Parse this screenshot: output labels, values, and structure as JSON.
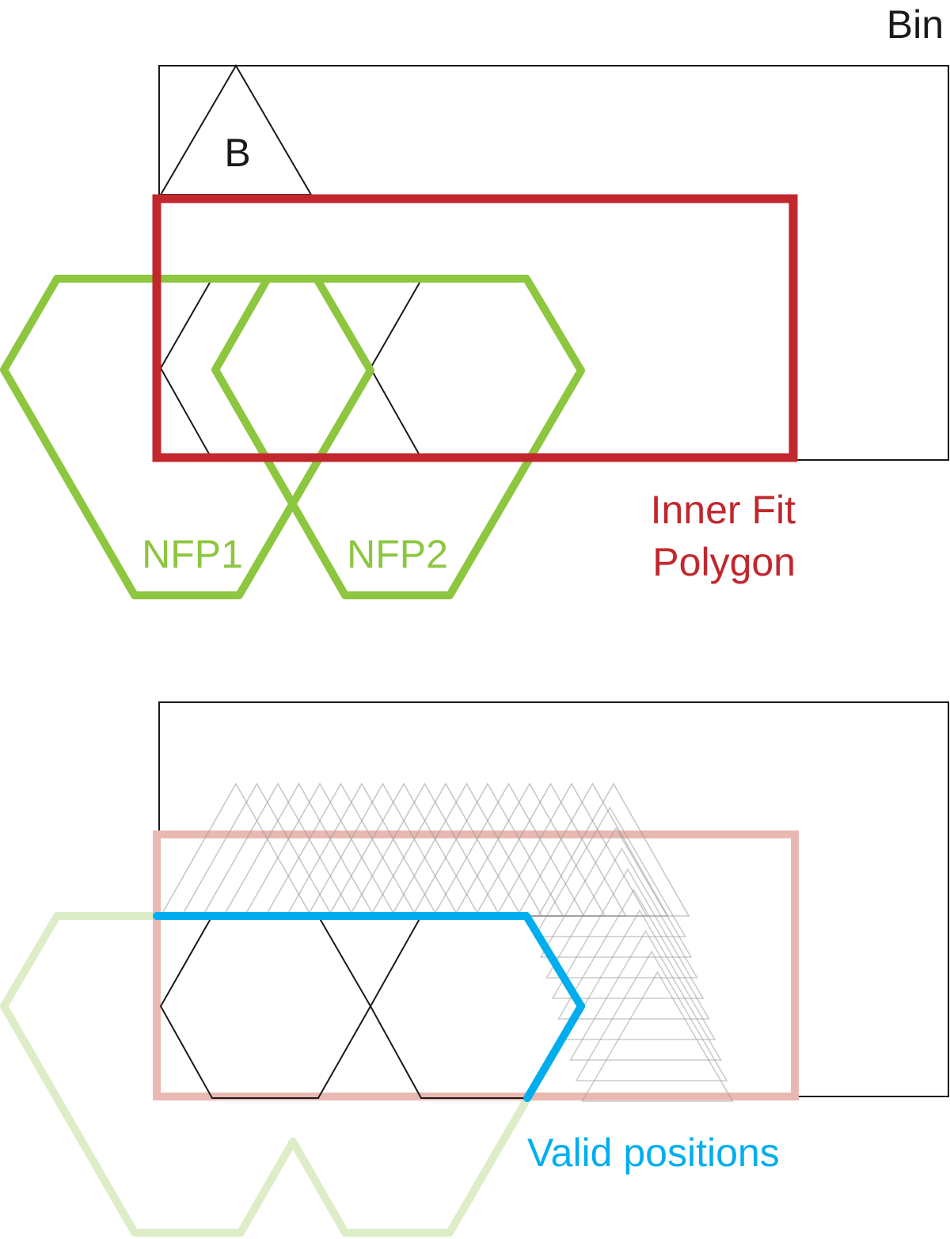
{
  "labels": {
    "bin": "Bin",
    "part": "B",
    "nfp1": "NFP1",
    "nfp2": "NFP2",
    "ifp_line1": "Inner Fit",
    "ifp_line2": "Polygon",
    "valid": "Valid positions"
  },
  "colors": {
    "outline": "#1a1a1a",
    "nfp": "#8dc63f",
    "nfp_faded": "#dcedc8",
    "ifp": "#c1272d",
    "ifp_faded": "#e8b9b0",
    "valid": "#00aeef",
    "ghost": "#9a9a9a",
    "text": "#1a1a1a"
  }
}
